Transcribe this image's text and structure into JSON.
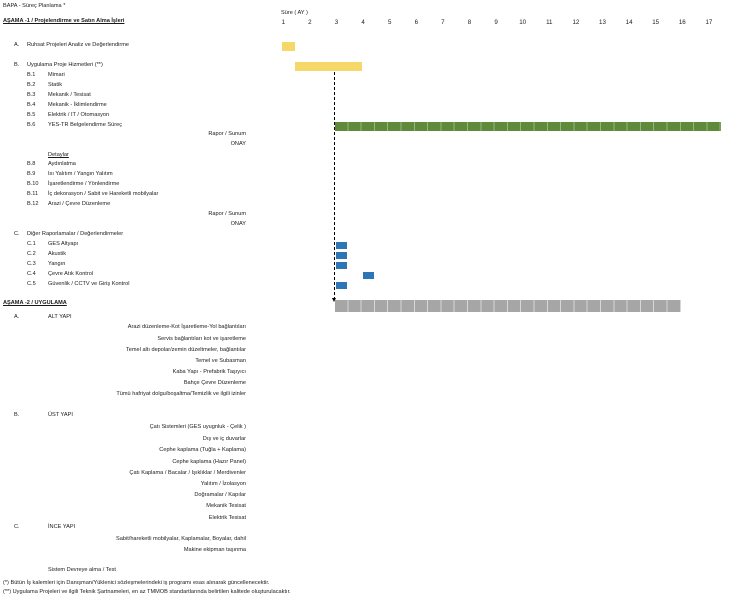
{
  "doc_title": "BAPA - Süreç Planlama *",
  "duration_label": "Süre ( AY )",
  "months": [
    "1",
    "2",
    "3",
    "4",
    "5",
    "6",
    "7",
    "8",
    "9",
    "10",
    "11",
    "12",
    "13",
    "14",
    "15",
    "16",
    "17"
  ],
  "phase1": {
    "title": "AŞAMA -1 /  Projelendirme ve Satın Alma İşleri",
    "A": {
      "code": "A.",
      "label": "Ruhsat Projeleri Analiz ve Değerlendirme"
    },
    "B": {
      "code": "B.",
      "label": "Uygulama Proje Hizmetleri (**)"
    },
    "B_items": [
      {
        "code": "B.1",
        "label": "Mimari"
      },
      {
        "code": "B.2",
        "label": "Statik"
      },
      {
        "code": "B.3",
        "label": "Mekanik / Tesisat"
      },
      {
        "code": "B.4",
        "label": "Mekanik - İklimlendirme"
      },
      {
        "code": "B.5",
        "label": "Elektrik / IT / Otomasyon"
      },
      {
        "code": "B.6",
        "label": "YES-TR Belgelendirme Süreç"
      }
    ],
    "rapor1": "Rapor / Sunum",
    "onay1": "ONAY",
    "details_heading": "Detaylar",
    "B_details": [
      {
        "code": "B.8",
        "label": "Aydınlatma"
      },
      {
        "code": "B.9",
        "label": "Isı Yalıtım / Yangın Yalıtım"
      },
      {
        "code": "B.10",
        "label": "İşaretlendirme / Yönlendirme"
      },
      {
        "code": "B.11",
        "label": "İç dekorasyon / Sabit ve Hareketli mobilyalar"
      },
      {
        "code": "B.12",
        "label": "Arazi / Çevre Düzenleme"
      }
    ],
    "rapor2": "Rapor / Sunum",
    "onay2": "ONAY",
    "C": {
      "code": "C.",
      "label": "Diğer Raporlamalar / Değerlendirmeler"
    },
    "C_items": [
      {
        "code": "C.1",
        "label": "GES Altyapı"
      },
      {
        "code": "C.2",
        "label": "Akustik"
      },
      {
        "code": "C.3",
        "label": "Yangın"
      },
      {
        "code": "C.4",
        "label": "Çevre Atık Kontrol"
      },
      {
        "code": "C.5",
        "label": "Güvenlik / CCTV ve Giriş Kontrol"
      }
    ]
  },
  "phase2": {
    "title": "AŞAMA -2 /  UYGULAMA",
    "A": {
      "code": "A.",
      "label": "ALT YAPI"
    },
    "A_items": [
      "Arazi düzenleme-Kot İşaretleme-Yol bağlantıları",
      "Servis bağlantıları kot ve işaretleme",
      "Temel altı depolar/zemin düzeltmeler, bağlantılar",
      "Temel ve Subasman",
      "Kaba Yapı - Prefabrik Taşıyıcı",
      "Bahçe Çevre Düzenleme",
      "Tümü hafriyat dolgu/boşaltma/Temizlik ve ilgili izinler"
    ],
    "B": {
      "code": "B.",
      "label": "ÜST YAPI"
    },
    "B_items": [
      "Çatı Sistemleri (GES uyugnluk - Çelik )",
      "Dış ve iç duvarlar",
      "Cephe kaplama (Tuğla + Kaplama)",
      "Cephe kaplama (Hazır Panel)",
      "Çatı Kaplama / Bacalar / Işıklıklar / Merdivenler",
      "Yalıtım / İzolasyon",
      "Doğramalar / Kapılar",
      "Mekanik Tesisat",
      "Elektrik Tesisat"
    ],
    "C": {
      "code": "C.",
      "label": "İNCE YAPI"
    },
    "C_items": [
      "Sabit/hareketli mobilyalar, Kaplamalar, Boyalar, dahil",
      "Makine ekipman taşınma"
    ],
    "commissioning": "Sistem Devreye alma / Test"
  },
  "footnotes": [
    "(*) Bütün İş kalemleri için Danışman/Yüklenici sözleşmelerindeki iş programı esas alınarak güncellenecektir.",
    "(**) Uygulama Projeleri ve ilgili Teknik Şartnameleri, en az TMMOB standartlarında belirtilen kalitede oluşturulacaktır."
  ],
  "gantt": {
    "bars": [
      {
        "task": "Ruhsat Projeleri Analiz ve Değerlendirme",
        "start_month": 1,
        "end_month": 1.5,
        "color": "#F6D76A"
      },
      {
        "task": "Uygulama Proje Hizmetleri (**)",
        "start_month": 1.5,
        "end_month": 4,
        "color": "#F6D76A"
      },
      {
        "task": "YES-TR Belgelendirme Süreç",
        "start_month": 3,
        "end_month": 17.5,
        "color": "#5E8A3A"
      },
      {
        "task": "AŞAMA -2 /  UYGULAMA",
        "start_month": 3,
        "end_month": 16,
        "color": "#A6A6A6"
      }
    ],
    "cells": [
      {
        "task": "C.1 GES Altyapı",
        "month": 3,
        "color": "#2E75B6"
      },
      {
        "task": "C.2 Akustik",
        "month": 3,
        "color": "#2E75B6"
      },
      {
        "task": "C.3 Yangın",
        "month": 3,
        "color": "#2E75B6"
      },
      {
        "task": "C.4 Çevre Atık Kontrol",
        "month": 4,
        "color": "#2E75B6"
      },
      {
        "task": "C.5 Güvenlik / CCTV ve Giriş Kontrol",
        "month": 3,
        "color": "#2E75B6"
      }
    ]
  }
}
